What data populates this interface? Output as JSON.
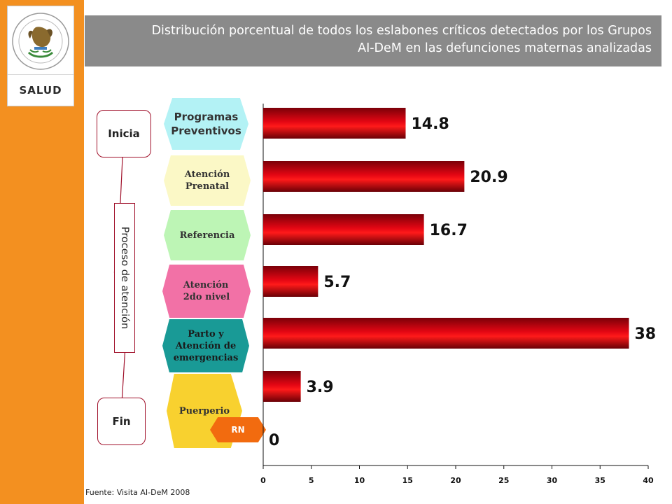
{
  "sidebar": {
    "logo_label": "SALUD",
    "colors": {
      "sidebar": "#f39020",
      "title_bar": "#8a8a8a"
    }
  },
  "header": {
    "title_line1": "Distribución porcentual de todos los eslabones críticos detectados por los Grupos",
    "title_line2": "AI-DeM en las defunciones maternas analizadas"
  },
  "flow": {
    "start_label": "Inicia",
    "end_label": "Fin",
    "process_label": "Proceso de atención"
  },
  "stages": [
    {
      "label_line1": "Programas",
      "label_line2": "Preventivos",
      "color": "#b3f2f5"
    },
    {
      "label_line1": "Atención",
      "label_line2": "Prenatal",
      "color": "#fbf8c6"
    },
    {
      "label_line1": "Referencia",
      "label_line2": "",
      "color": "#bdf5b5"
    },
    {
      "label_line1": "Atención",
      "label_line2": "2do nivel",
      "color": "#f271a6"
    },
    {
      "label_line1": "Parto y",
      "label_line2": "Atención de",
      "label_line3": "emergencias",
      "color": "#199a96"
    },
    {
      "label_line1": "Puerperio",
      "label_line2": "",
      "color": "#f8d12f"
    }
  ],
  "rn_label": "RN",
  "source": "Fuente: Visita AI-DeM 2008",
  "chart_data": {
    "type": "bar",
    "orientation": "horizontal",
    "categories": [
      "Programas Preventivos",
      "Atención Prenatal",
      "Referencia",
      "Atención 2do nivel",
      "Parto y Atención de emergencias",
      "Puerperio",
      "RN"
    ],
    "values": [
      14.8,
      20.9,
      16.7,
      5.7,
      38,
      3.9,
      0
    ],
    "value_labels": [
      "14.8",
      "20.9",
      "16.7",
      "5.7",
      "38",
      "3.9",
      "0"
    ],
    "xlim": [
      0,
      40
    ],
    "ticks": [
      0,
      5,
      10,
      15,
      20,
      25,
      30,
      35,
      40
    ],
    "title": "",
    "xlabel": "",
    "ylabel": "",
    "bar_color": "#e30613",
    "grid": false
  }
}
